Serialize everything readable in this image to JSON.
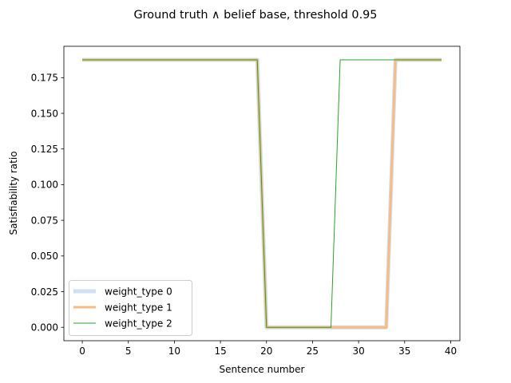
{
  "chart_data": {
    "type": "line",
    "title": "Ground truth ∧ belief base, threshold 0.95",
    "xlabel": "Sentence number",
    "ylabel": "Satisfiability ratio",
    "xlim": [
      -2.0,
      41.0
    ],
    "ylim": [
      -0.0094,
      0.197
    ],
    "xticks": [
      0,
      5,
      10,
      15,
      20,
      25,
      30,
      35,
      40
    ],
    "xtick_labels": [
      "0",
      "5",
      "10",
      "15",
      "20",
      "25",
      "30",
      "35",
      "40"
    ],
    "yticks": [
      0.0,
      0.025,
      0.05,
      0.075,
      0.1,
      0.125,
      0.15,
      0.175
    ],
    "ytick_labels": [
      "0.000",
      "0.025",
      "0.050",
      "0.075",
      "0.100",
      "0.125",
      "0.150",
      "0.175"
    ],
    "grid": false,
    "legend_position": "lower left",
    "x": [
      0,
      1,
      2,
      3,
      4,
      5,
      6,
      7,
      8,
      9,
      10,
      11,
      12,
      13,
      14,
      15,
      16,
      17,
      18,
      19,
      20,
      21,
      22,
      23,
      24,
      25,
      26,
      27,
      28,
      29,
      30,
      31,
      32,
      33,
      34,
      35,
      36,
      37,
      38,
      39
    ],
    "series": [
      {
        "name": "weight_type 0",
        "color": "#c6dbef",
        "values": [
          0.1875,
          0.1875,
          0.1875,
          0.1875,
          0.1875,
          0.1875,
          0.1875,
          0.1875,
          0.1875,
          0.1875,
          0.1875,
          0.1875,
          0.1875,
          0.1875,
          0.1875,
          0.1875,
          0.1875,
          0.1875,
          0.1875,
          0.1875,
          0,
          0,
          0,
          0,
          0,
          0,
          0,
          0,
          0,
          0,
          0,
          0,
          0,
          0,
          0.1875,
          0.1875,
          0.1875,
          0.1875,
          0.1875,
          0.1875
        ]
      },
      {
        "name": "weight_type 1",
        "color": "#f9bb84",
        "values": [
          0.1875,
          0.1875,
          0.1875,
          0.1875,
          0.1875,
          0.1875,
          0.1875,
          0.1875,
          0.1875,
          0.1875,
          0.1875,
          0.1875,
          0.1875,
          0.1875,
          0.1875,
          0.1875,
          0.1875,
          0.1875,
          0.1875,
          0.1875,
          0,
          0,
          0,
          0,
          0,
          0,
          0,
          0,
          0,
          0,
          0,
          0,
          0,
          0,
          0.1875,
          0.1875,
          0.1875,
          0.1875,
          0.1875,
          0.1875
        ]
      },
      {
        "name": "weight_type 2",
        "color": "#2ca02c",
        "values": [
          0.1875,
          0.1875,
          0.1875,
          0.1875,
          0.1875,
          0.1875,
          0.1875,
          0.1875,
          0.1875,
          0.1875,
          0.1875,
          0.1875,
          0.1875,
          0.1875,
          0.1875,
          0.1875,
          0.1875,
          0.1875,
          0.1875,
          0.1875,
          0,
          0,
          0,
          0,
          0,
          0,
          0,
          0,
          0.1875,
          0.1875,
          0.1875,
          0.1875,
          0.1875,
          0.1875,
          0.1875,
          0.1875,
          0.1875,
          0.1875,
          0.1875,
          0.1875
        ]
      }
    ]
  }
}
